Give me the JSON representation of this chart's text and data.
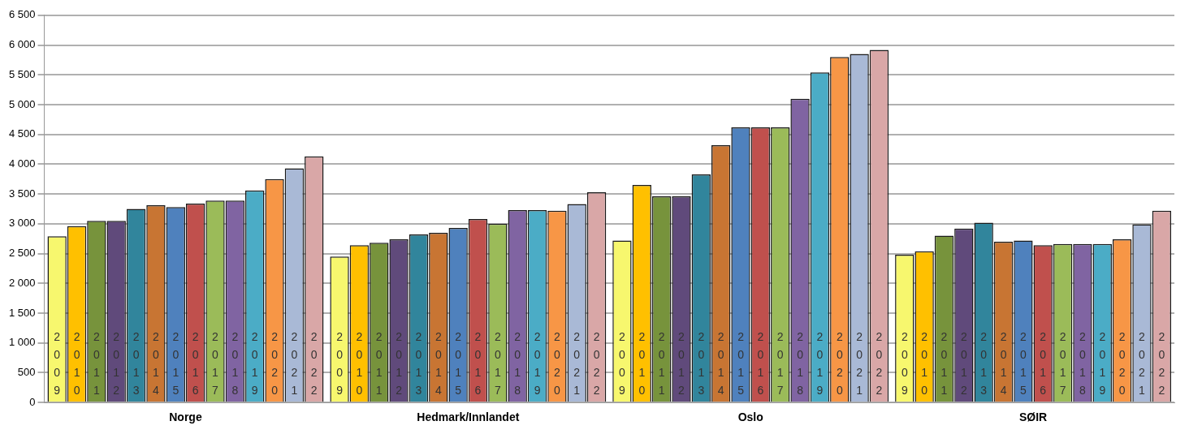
{
  "chart_data": {
    "type": "bar",
    "categories": [
      "Norge",
      "Hedmark/Innlandet",
      "Oslo",
      "SØIR"
    ],
    "series": [
      {
        "name": "2009",
        "color": "#f7f76e",
        "values": [
          2790,
          2450,
          2720,
          2480
        ]
      },
      {
        "name": "2010",
        "color": "#ffc000",
        "values": [
          2960,
          2640,
          3650,
          2540
        ]
      },
      {
        "name": "2011",
        "color": "#77933c",
        "values": [
          3050,
          2680,
          3460,
          2800
        ]
      },
      {
        "name": "2012",
        "color": "#604a7b",
        "values": [
          3050,
          2740,
          3460,
          2920
        ]
      },
      {
        "name": "2013",
        "color": "#31859c",
        "values": [
          3250,
          2820,
          3830,
          3020
        ]
      },
      {
        "name": "2014",
        "color": "#c87533",
        "values": [
          3310,
          2850,
          4320,
          2700
        ]
      },
      {
        "name": "2015",
        "color": "#4f81bd",
        "values": [
          3280,
          2930,
          4620,
          2720
        ]
      },
      {
        "name": "2016",
        "color": "#c0504d",
        "values": [
          3340,
          3080,
          4620,
          2640
        ]
      },
      {
        "name": "2017",
        "color": "#9bbb59",
        "values": [
          3390,
          3000,
          4620,
          2660
        ]
      },
      {
        "name": "2018",
        "color": "#8064a2",
        "values": [
          3390,
          3230,
          5100,
          2660
        ]
      },
      {
        "name": "2019",
        "color": "#4bacc6",
        "values": [
          3560,
          3230,
          5540,
          2660
        ]
      },
      {
        "name": "2020",
        "color": "#f79646",
        "values": [
          3750,
          3220,
          5800,
          2740
        ]
      },
      {
        "name": "2021",
        "color": "#a9b9d6",
        "values": [
          3930,
          3330,
          5850,
          2990
        ]
      },
      {
        "name": "2022",
        "color": "#d9a7a7",
        "values": [
          4130,
          3530,
          5920,
          3220
        ]
      }
    ],
    "ylim": [
      0,
      6500
    ],
    "yticks": [
      {
        "value": 0,
        "label": "0"
      },
      {
        "value": 500,
        "label": "500"
      },
      {
        "value": 1000,
        "label": "1 000"
      },
      {
        "value": 1500,
        "label": "1 500"
      },
      {
        "value": 2000,
        "label": "2 000"
      },
      {
        "value": 2500,
        "label": "2 500"
      },
      {
        "value": 3000,
        "label": "3 000"
      },
      {
        "value": 3500,
        "label": "3 500"
      },
      {
        "value": 4000,
        "label": "4 000"
      },
      {
        "value": 4500,
        "label": "4 500"
      },
      {
        "value": 5000,
        "label": "5 000"
      },
      {
        "value": 5500,
        "label": "5 500"
      },
      {
        "value": 6000,
        "label": "6 000"
      },
      {
        "value": 6500,
        "label": "6 500"
      }
    ],
    "grid": "y",
    "legend": false
  }
}
